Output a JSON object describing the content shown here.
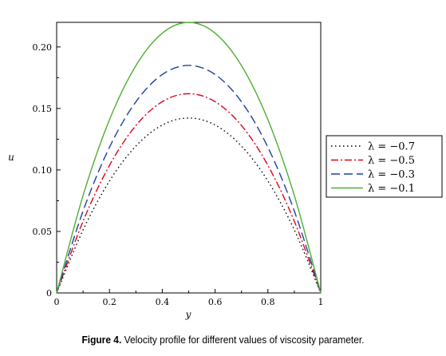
{
  "caption": {
    "figure_label": "Figure 4.",
    "text": "Velocity profile for different values of viscosity parameter."
  },
  "chart_data": {
    "type": "line",
    "title": "",
    "xlabel": "y",
    "ylabel": "u",
    "xlim": [
      0,
      1
    ],
    "ylim": [
      0,
      0.22
    ],
    "x_ticks": [
      "0",
      "0.2",
      "0.4",
      "0.6",
      "0.8",
      "1"
    ],
    "y_ticks": [
      "0",
      "0.05",
      "0.10",
      "0.15",
      "0.20"
    ],
    "legend_position": "right",
    "grid": false,
    "x": [
      0,
      0.1,
      0.2,
      0.3,
      0.4,
      0.5,
      0.6,
      0.7,
      0.8,
      0.9,
      1.0
    ],
    "series": [
      {
        "name": "λ = −0.7",
        "style": "dotted",
        "color": "#000000",
        "values": [
          0,
          0.0512,
          0.091,
          0.1194,
          0.1365,
          0.1422,
          0.1365,
          0.1194,
          0.091,
          0.0512,
          0
        ]
      },
      {
        "name": "λ = −0.5",
        "style": "dashdot",
        "color": "#e0001b",
        "values": [
          0,
          0.0583,
          0.1037,
          0.1361,
          0.1555,
          0.162,
          0.1555,
          0.1361,
          0.1037,
          0.0583,
          0
        ]
      },
      {
        "name": "λ = −0.3",
        "style": "dashed",
        "color": "#1f3f9f",
        "values": [
          0,
          0.0666,
          0.1184,
          0.1554,
          0.1776,
          0.185,
          0.1776,
          0.1554,
          0.1184,
          0.0666,
          0
        ]
      },
      {
        "name": "λ = −0.1",
        "style": "solid",
        "color": "#4caf32",
        "values": [
          0,
          0.0792,
          0.1408,
          0.1848,
          0.2112,
          0.22,
          0.2112,
          0.1848,
          0.1408,
          0.0792,
          0
        ]
      }
    ]
  }
}
